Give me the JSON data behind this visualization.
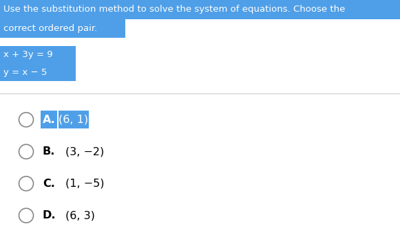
{
  "title_line1": "Use the substitution method to solve the system of equations. Choose the",
  "title_line2": "correct ordered pair.",
  "title_bg_color": "#4f9fe8",
  "title_text_color": "#ffffff",
  "eq_line1": "x + 3y = 9",
  "eq_line2": "y = x − 5",
  "eq_bg_color": "#4f9fe8",
  "eq_text_color": "#ffffff",
  "options": [
    {
      "label": "A.",
      "text": "(6, 1)",
      "correct": true
    },
    {
      "label": "B.",
      "text": "(3, −2)",
      "correct": false
    },
    {
      "label": "C.",
      "text": "(1, −5)",
      "correct": false
    },
    {
      "label": "D.",
      "text": "(6, 3)",
      "correct": false
    }
  ],
  "option_highlight_color": "#4f9fe8",
  "option_text_color": "#000000",
  "circle_color": "#888888",
  "bg_color": "#ffffff",
  "divider_color": "#cccccc",
  "font_size_title": 9.5,
  "font_size_eq": 9.5,
  "font_size_options": 11.5
}
